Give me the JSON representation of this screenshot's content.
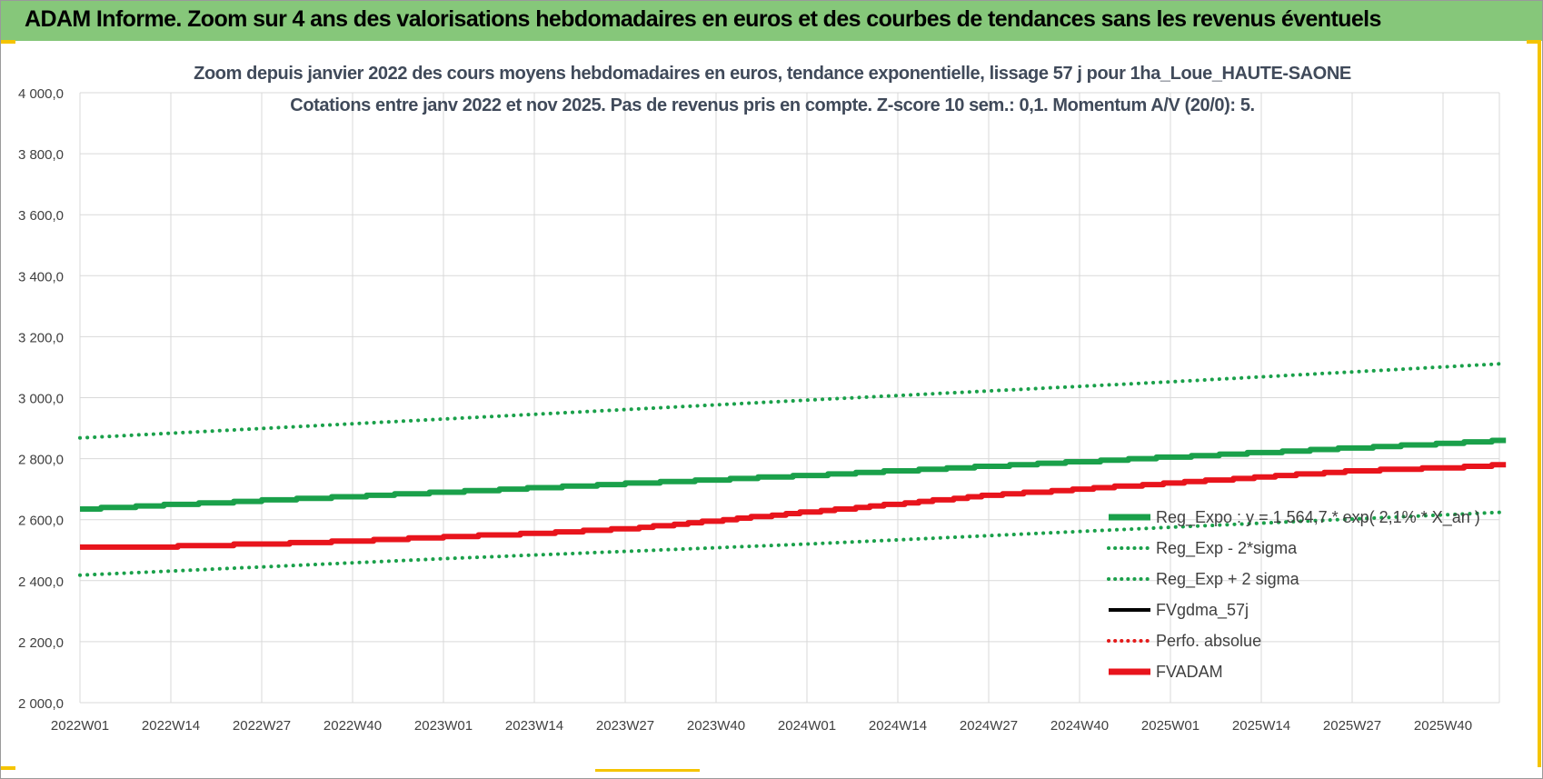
{
  "banner": {
    "title": "ADAM Informe. Zoom sur 4 ans des valorisations hebdomadaires en euros et des courbes de tendances sans les revenus éventuels",
    "color": "#86c77a"
  },
  "chart_data": {
    "type": "line",
    "title_line1": "Zoom depuis janvier 2022 des cours moyens hebdomadaires en euros, tendance exponentielle, lissage 57 j pour 1ha_Loue_HAUTE-SAONE",
    "title_line2": "Cotations entre janv 2022 et nov 2025. Pas de revenus pris en compte. Z-score 10 sem.: 0,1. Momentum A/V (20/0): 5.",
    "xlabel": "",
    "ylabel": "",
    "ylim": [
      2000,
      4000
    ],
    "yticks": [
      "2 000,0",
      "2 200,0",
      "2 400,0",
      "2 600,0",
      "2 800,0",
      "3 000,0",
      "3 200,0",
      "3 400,0",
      "3 600,0",
      "3 800,0",
      "4 000,0"
    ],
    "xticks": [
      "2022W01",
      "2022W14",
      "2022W27",
      "2022W40",
      "2023W01",
      "2023W14",
      "2023W27",
      "2023W40",
      "2024W01",
      "2024W14",
      "2024W27",
      "2024W40",
      "2025W01",
      "2025W14",
      "2025W27",
      "2025W40"
    ],
    "x_range_weeks": [
      0,
      204
    ],
    "grid": true,
    "legend_position": "bottom-right",
    "series": [
      {
        "name": "Reg_Expo : y = 1 564,7 * exp( 2,1% * X_an )",
        "color": "#1aa04a",
        "style": "solid-thick",
        "x_weeks": [
          0,
          52,
          104,
          156,
          204
        ],
        "values": [
          2635,
          2690,
          2745,
          2805,
          2860
        ]
      },
      {
        "name": "Reg_Exp - 2*sigma",
        "color": "#1aa04a",
        "style": "dotted",
        "x_weeks": [
          0,
          52,
          104,
          156,
          204
        ],
        "values": [
          2418,
          2472,
          2520,
          2575,
          2625
        ]
      },
      {
        "name": "Reg_Exp + 2 sigma",
        "color": "#1aa04a",
        "style": "dotted",
        "x_weeks": [
          0,
          52,
          104,
          156,
          204
        ],
        "values": [
          2868,
          2930,
          2992,
          3052,
          3112
        ]
      },
      {
        "name": "FVgdma_57j",
        "color": "#000000",
        "style": "solid",
        "x_weeks": [],
        "values": []
      },
      {
        "name": "Perfo. absolue",
        "color": "#e31a1a",
        "style": "dotted",
        "x_weeks": [],
        "values": []
      },
      {
        "name": "FVADAM",
        "color": "#e8141c",
        "style": "solid-thick",
        "x_weeks": [
          0,
          13,
          26,
          39,
          52,
          65,
          78,
          91,
          104,
          117,
          130,
          143,
          156,
          169,
          182,
          195,
          204
        ],
        "values": [
          2508,
          2512,
          2520,
          2530,
          2543,
          2555,
          2570,
          2597,
          2625,
          2652,
          2680,
          2700,
          2720,
          2740,
          2760,
          2770,
          2780
        ]
      }
    ]
  }
}
